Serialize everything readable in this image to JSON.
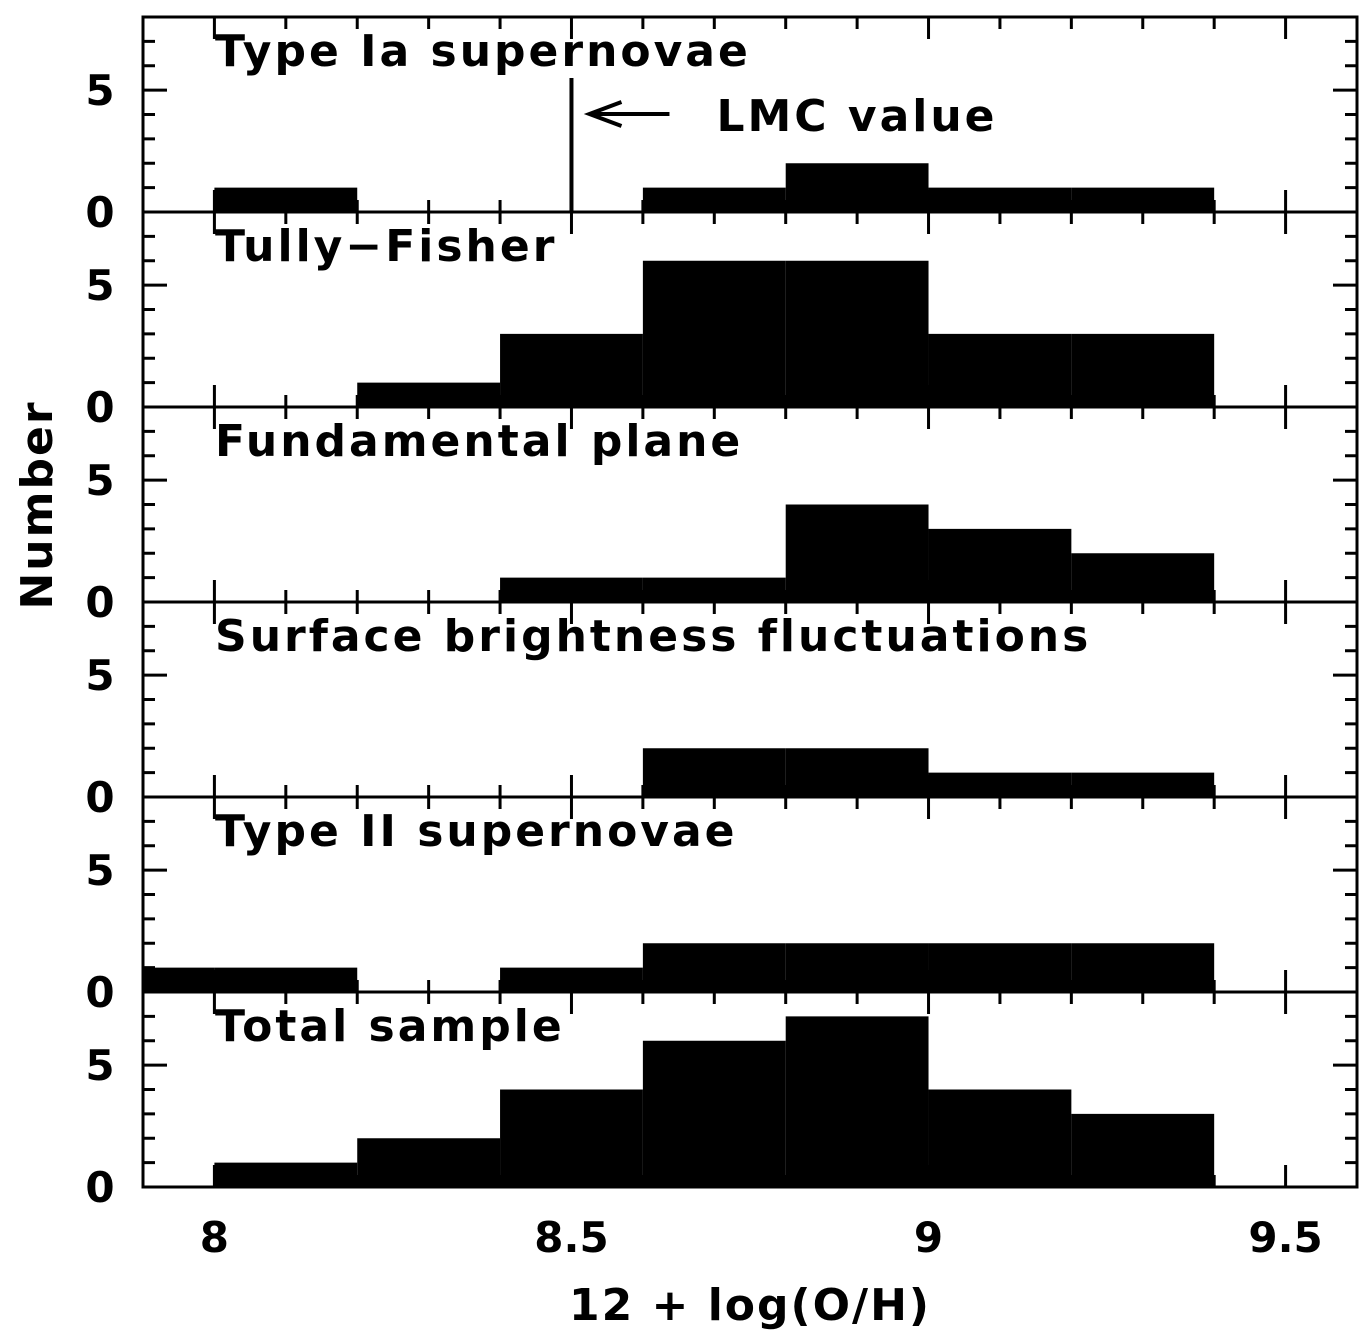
{
  "chart_data": {
    "type": "bar",
    "layout": "stacked-panels-shared-x",
    "xlabel": "12 + log(O/H)",
    "ylabel": "Number",
    "xlim": [
      7.9,
      9.6
    ],
    "ylim": [
      0,
      8
    ],
    "x_ticks": [
      "8",
      "8.5",
      "9",
      "9.5"
    ],
    "y_ticks": [
      "0",
      "5"
    ],
    "bin_edges": [
      7.8,
      8.0,
      8.2,
      8.4,
      8.6,
      8.8,
      9.0,
      9.2,
      9.4
    ],
    "bar_color": "#000000",
    "annotation": {
      "text": "LMC value",
      "x": 8.5,
      "line_top": 5.5
    },
    "panels": [
      {
        "name": "Type Ia supernovae",
        "counts": [
          0,
          1,
          0,
          0,
          1,
          2,
          1,
          1
        ]
      },
      {
        "name": "Tully−Fisher",
        "counts": [
          0,
          0,
          1,
          3,
          6,
          6,
          3,
          3
        ]
      },
      {
        "name": "Fundamental plane",
        "counts": [
          0,
          0,
          0,
          1,
          1,
          4,
          3,
          2
        ]
      },
      {
        "name": "Surface brightness fluctuations",
        "counts": [
          0,
          0,
          0,
          0,
          2,
          2,
          1,
          1
        ]
      },
      {
        "name": "Type II supernovae",
        "counts": [
          1,
          1,
          0,
          1,
          2,
          2,
          2,
          2
        ]
      },
      {
        "name": "Total sample",
        "counts": [
          0,
          1,
          2,
          4,
          6,
          7,
          4,
          3
        ]
      }
    ]
  }
}
